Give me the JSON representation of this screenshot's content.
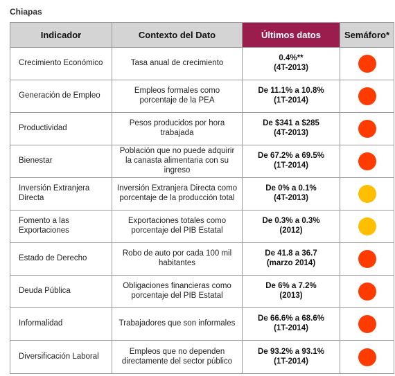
{
  "state": "Chiapas",
  "headers": {
    "indicador": "Indicador",
    "contexto": "Contexto del Dato",
    "ultimos": "Últimos datos",
    "semaforo": "Semáforo*"
  },
  "colors": {
    "header_highlight": "#9b1d4e",
    "red": "#ff3b00",
    "yellow": "#ffbf00"
  },
  "rows": [
    {
      "indicador": "Crecimiento Económico",
      "contexto": "Tasa  anual de crecimiento",
      "valor": "0.4%**",
      "periodo": "(4T-2013)",
      "semaforo": "red"
    },
    {
      "indicador": "Generación de Empleo",
      "contexto": "Empleos formales como porcentaje de la PEA",
      "valor": "De 11.1% a 10.8%",
      "periodo": "(1T-2014)",
      "semaforo": "red"
    },
    {
      "indicador": "Productividad",
      "contexto": "Pesos producidos por hora trabajada",
      "valor": "De $341 a $285",
      "periodo": "(4T-2013)",
      "semaforo": "red"
    },
    {
      "indicador": "Bienestar",
      "contexto": "Población que no puede adquirir la canasta alimentaria con su ingreso",
      "valor": "De 67.2% a 69.5%",
      "periodo": "(1T-2014)",
      "semaforo": "red"
    },
    {
      "indicador": "Inversión Extranjera Directa",
      "contexto": "Inversión Extranjera Directa como porcentaje de la producción total",
      "valor": "De 0% a 0.1%",
      "periodo": "(4T-2013)",
      "semaforo": "yellow"
    },
    {
      "indicador": "Fomento a las Exportaciones",
      "contexto": "Exportaciones totales como porcentaje del PIB Estatal",
      "valor": "De 0.3% a 0.3%",
      "periodo": "(2012)",
      "semaforo": "yellow"
    },
    {
      "indicador": "Estado de Derecho",
      "contexto": "Robo de auto por cada 100 mil habitantes",
      "valor": "De 41.8 a 36.7",
      "periodo": "(marzo 2014)",
      "semaforo": "red"
    },
    {
      "indicador": "Deuda Pública",
      "contexto": "Obligaciones financieras como porcentaje del PIB Estatal",
      "valor": "De 6% a 7.2%",
      "periodo": "(2013)",
      "semaforo": "red"
    },
    {
      "indicador": "Informalidad",
      "contexto": "Trabajadores que son informales",
      "valor": "De 66.6% a 68.6%",
      "periodo": "(1T-2014)",
      "semaforo": "red"
    },
    {
      "indicador": "Diversificación Laboral",
      "contexto": "Empleos que no dependen directamente del sector público",
      "valor": "De 93.2% a 93.1%",
      "periodo": "(1T-2014)",
      "semaforo": "red"
    }
  ]
}
